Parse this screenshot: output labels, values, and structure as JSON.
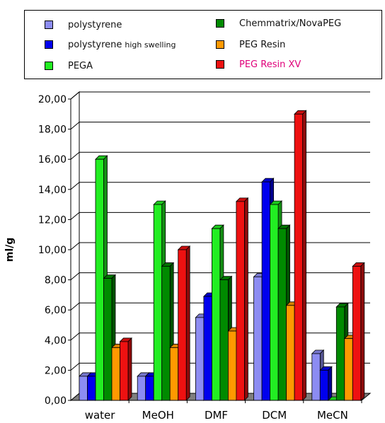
{
  "chart_data": {
    "type": "bar",
    "categories": [
      "water",
      "MeOH",
      "DMF",
      "DCM",
      "MeCN"
    ],
    "ylabel": "ml/g",
    "ylim": [
      0,
      20
    ],
    "yticks": [
      "0,00",
      "2,00",
      "4,00",
      "6,00",
      "8,00",
      "10,00",
      "12,00",
      "14,00",
      "16,00",
      "18,00",
      "20,00"
    ],
    "grid": true,
    "legend_position": "top",
    "series": [
      {
        "name": "polystyrene",
        "color": "#8c8cf2",
        "values": [
          1.6,
          1.6,
          5.5,
          8.2,
          3.1
        ]
      },
      {
        "name": "polystyrene high swelling",
        "color": "#0000ee",
        "values": [
          1.6,
          1.6,
          6.9,
          14.5,
          2.0
        ]
      },
      {
        "name": "PEGA",
        "color": "#22ee22",
        "values": [
          16.0,
          13.0,
          11.4,
          13.0,
          0.0
        ]
      },
      {
        "name": "Chemmatrix/NovaPEG",
        "color": "#008a00",
        "values": [
          8.1,
          8.9,
          8.0,
          11.4,
          6.2
        ]
      },
      {
        "name": "PEG Resin",
        "color": "#ff9900",
        "values": [
          3.5,
          3.5,
          4.6,
          6.3,
          4.1
        ]
      },
      {
        "name": "PEG Resin XV",
        "color": "#ee1111",
        "values": [
          3.9,
          10.0,
          13.2,
          19.0,
          8.9
        ]
      }
    ]
  },
  "legend": {
    "items": [
      {
        "label": "polystyrene",
        "suffix": "",
        "color": "#8c8cf2",
        "text_color": "#111111"
      },
      {
        "label": "polystyrene",
        "suffix": "high swelling",
        "color": "#0000ee",
        "text_color": "#111111"
      },
      {
        "label": "PEGA",
        "suffix": "",
        "color": "#22ee22",
        "text_color": "#111111"
      },
      {
        "label": "Chemmatrix/NovaPEG",
        "suffix": "",
        "color": "#008a00",
        "text_color": "#111111"
      },
      {
        "label": "PEG Resin",
        "suffix": "",
        "color": "#ff9900",
        "text_color": "#111111"
      },
      {
        "label": "PEG Resin XV",
        "suffix": "",
        "color": "#ee1111",
        "text_color": "#e0007a"
      }
    ]
  }
}
